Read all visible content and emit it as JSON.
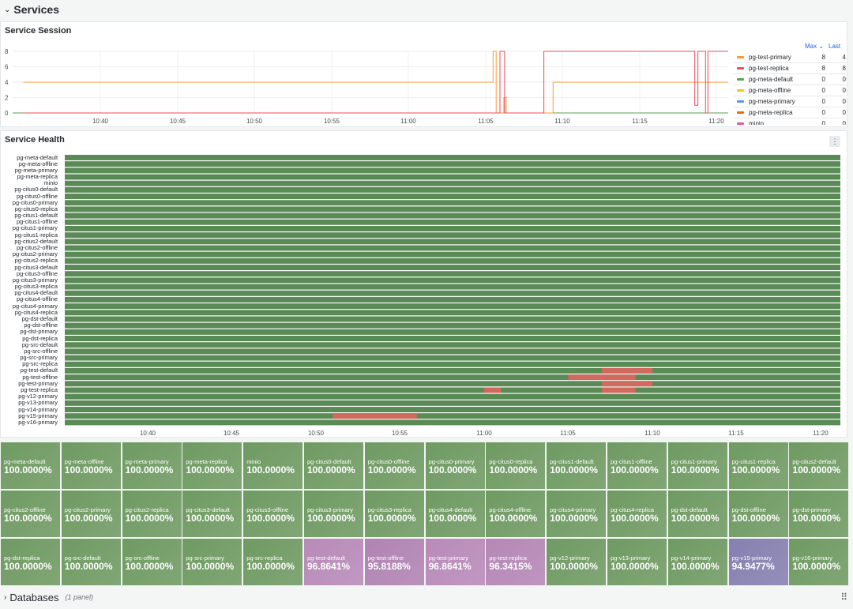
{
  "row": {
    "title": "Services",
    "chevron": "chevron-down-icon"
  },
  "session_panel": {
    "title": "Service Session",
    "y_ticks": [
      "8",
      "6",
      "4",
      "2",
      "0"
    ],
    "x_ticks": [
      "10:40",
      "10:45",
      "10:50",
      "10:55",
      "11:00",
      "11:05",
      "11:10",
      "11:15",
      "11:20"
    ],
    "legend_headers": {
      "max": "Max",
      "last": "Last"
    },
    "legend": [
      {
        "name": "pg-test-primary",
        "color": "#ff9830",
        "max": "8",
        "last": "4"
      },
      {
        "name": "pg-test-replica",
        "color": "#f2495c",
        "max": "8",
        "last": "8"
      },
      {
        "name": "pg-meta-default",
        "color": "#56a64b",
        "max": "0",
        "last": "0"
      },
      {
        "name": "pg-meta-offline",
        "color": "#f2cc0c",
        "max": "0",
        "last": "0"
      },
      {
        "name": "pg-meta-primary",
        "color": "#5794f2",
        "max": "0",
        "last": "0"
      },
      {
        "name": "pg-meta-replica",
        "color": "#fa6400",
        "max": "0",
        "last": "0"
      },
      {
        "name": "minio",
        "color": "#e05b8c",
        "max": "0",
        "last": "0"
      }
    ]
  },
  "health_panel": {
    "title": "Service Health",
    "x_ticks": [
      "10:40",
      "10:45",
      "10:50",
      "10:55",
      "11:00",
      "11:05",
      "11:10",
      "11:15",
      "11:20"
    ],
    "ok_color": "#5a8a56",
    "bad_color": "#d06a5f",
    "services": [
      "pg-meta-default",
      "pg-meta-offline",
      "pg-meta-primary",
      "pg-meta-replica",
      "minio",
      "pg-citus0-default",
      "pg-citus0-offline",
      "pg-citus0-primary",
      "pg-citus0-replica",
      "pg-citus1-default",
      "pg-citus1-offline",
      "pg-citus1-primary",
      "pg-citus1-replica",
      "pg-citus2-default",
      "pg-citus2-offline",
      "pg-citus2-primary",
      "pg-citus2-replica",
      "pg-citus3-default",
      "pg-citus3-offline",
      "pg-citus3-primary",
      "pg-citus3-replica",
      "pg-citus4-default",
      "pg-citus4-offline",
      "pg-citus4-primary",
      "pg-citus4-replica",
      "pg-dst-default",
      "pg-dst-offline",
      "pg-dst-primary",
      "pg-dst-replica",
      "pg-src-default",
      "pg-src-offline",
      "pg-src-primary",
      "pg-src-replica",
      "pg-test-default",
      "pg-test-offline",
      "pg-test-primary",
      "pg-test-replica",
      "pg-v12-primary",
      "pg-v13-primary",
      "pg-v14-primary",
      "pg-v15-primary",
      "pg-v16-primary"
    ],
    "outages": [
      {
        "service": "pg-test-default",
        "start": "11:07",
        "end": "11:10"
      },
      {
        "service": "pg-test-offline",
        "start": "11:05",
        "end": "11:09"
      },
      {
        "service": "pg-test-primary",
        "start": "11:07",
        "end": "11:10"
      },
      {
        "service": "pg-test-replica",
        "start": "11:00",
        "end": "11:01"
      },
      {
        "service": "pg-test-replica",
        "start": "11:07",
        "end": "11:09"
      },
      {
        "service": "pg-v15-primary",
        "start": "10:51",
        "end": "10:56"
      }
    ]
  },
  "stats": [
    {
      "name": "pg-meta-default",
      "value": "100.0000%",
      "color": "#6f9a62"
    },
    {
      "name": "pg-meta-offline",
      "value": "100.0000%",
      "color": "#6f9a62"
    },
    {
      "name": "pg-meta-primary",
      "value": "100.0000%",
      "color": "#6f9a62"
    },
    {
      "name": "pg-meta-replica",
      "value": "100.0000%",
      "color": "#6f9a62"
    },
    {
      "name": "minio",
      "value": "100.0000%",
      "color": "#6f9a62"
    },
    {
      "name": "pg-citus0-default",
      "value": "100.0000%",
      "color": "#6f9a62"
    },
    {
      "name": "pg-citus0-offline",
      "value": "100.0000%",
      "color": "#6f9a62"
    },
    {
      "name": "pg-citus0-primary",
      "value": "100.0000%",
      "color": "#6f9a62"
    },
    {
      "name": "pg-citus0-replica",
      "value": "100.0000%",
      "color": "#6f9a62"
    },
    {
      "name": "pg-citus1-default",
      "value": "100.0000%",
      "color": "#6f9a62"
    },
    {
      "name": "pg-citus1-offline",
      "value": "100.0000%",
      "color": "#6f9a62"
    },
    {
      "name": "pg-citus1-primary",
      "value": "100.0000%",
      "color": "#6f9a62"
    },
    {
      "name": "pg-citus1-replica",
      "value": "100.0000%",
      "color": "#6f9a62"
    },
    {
      "name": "pg-citus2-default",
      "value": "100.0000%",
      "color": "#6f9a62"
    },
    {
      "name": "pg-citus2-offline",
      "value": "100.0000%",
      "color": "#6f9a62"
    },
    {
      "name": "pg-citus2-primary",
      "value": "100.0000%",
      "color": "#6f9a62"
    },
    {
      "name": "pg-citus2-replica",
      "value": "100.0000%",
      "color": "#6f9a62"
    },
    {
      "name": "pg-citus3-default",
      "value": "100.0000%",
      "color": "#6f9a62"
    },
    {
      "name": "pg-citus3-offline",
      "value": "100.0000%",
      "color": "#6f9a62"
    },
    {
      "name": "pg-citus3-primary",
      "value": "100.0000%",
      "color": "#6f9a62"
    },
    {
      "name": "pg-citus3-replica",
      "value": "100.0000%",
      "color": "#6f9a62"
    },
    {
      "name": "pg-citus4-default",
      "value": "100.0000%",
      "color": "#6f9a62"
    },
    {
      "name": "pg-citus4-offline",
      "value": "100.0000%",
      "color": "#6f9a62"
    },
    {
      "name": "pg-citus4-primary",
      "value": "100.0000%",
      "color": "#6f9a62"
    },
    {
      "name": "pg-citus4-replica",
      "value": "100.0000%",
      "color": "#6f9a62"
    },
    {
      "name": "pg-dst-default",
      "value": "100.0000%",
      "color": "#6f9a62"
    },
    {
      "name": "pg-dst-offline",
      "value": "100.0000%",
      "color": "#6f9a62"
    },
    {
      "name": "pg-dst-primary",
      "value": "100.0000%",
      "color": "#6f9a62"
    },
    {
      "name": "pg-dst-replica",
      "value": "100.0000%",
      "color": "#6f9a62"
    },
    {
      "name": "pg-src-default",
      "value": "100.0000%",
      "color": "#6f9a62"
    },
    {
      "name": "pg-src-offline",
      "value": "100.0000%",
      "color": "#6f9a62"
    },
    {
      "name": "pg-src-primary",
      "value": "100.0000%",
      "color": "#6f9a62"
    },
    {
      "name": "pg-src-replica",
      "value": "100.0000%",
      "color": "#6f9a62"
    },
    {
      "name": "pg-test-default",
      "value": "96.8641%",
      "color": "#b88ab8"
    },
    {
      "name": "pg-test-offline",
      "value": "95.8188%",
      "color": "#b083b3"
    },
    {
      "name": "pg-test-primary",
      "value": "96.8641%",
      "color": "#b88ab8"
    },
    {
      "name": "pg-test-replica",
      "value": "96.3415%",
      "color": "#b587b6"
    },
    {
      "name": "pg-v12-primary",
      "value": "100.0000%",
      "color": "#6f9a62"
    },
    {
      "name": "pg-v13-primary",
      "value": "100.0000%",
      "color": "#6f9a62"
    },
    {
      "name": "pg-v14-primary",
      "value": "100.0000%",
      "color": "#6f9a62"
    },
    {
      "name": "pg-v15-primary",
      "value": "94.9477%",
      "color": "#8580b0"
    },
    {
      "name": "pg-v16-primary",
      "value": "100.0000%",
      "color": "#6f9a62"
    }
  ],
  "bottom_row": {
    "title": "Databases",
    "subtitle": "(1 panel)"
  }
}
